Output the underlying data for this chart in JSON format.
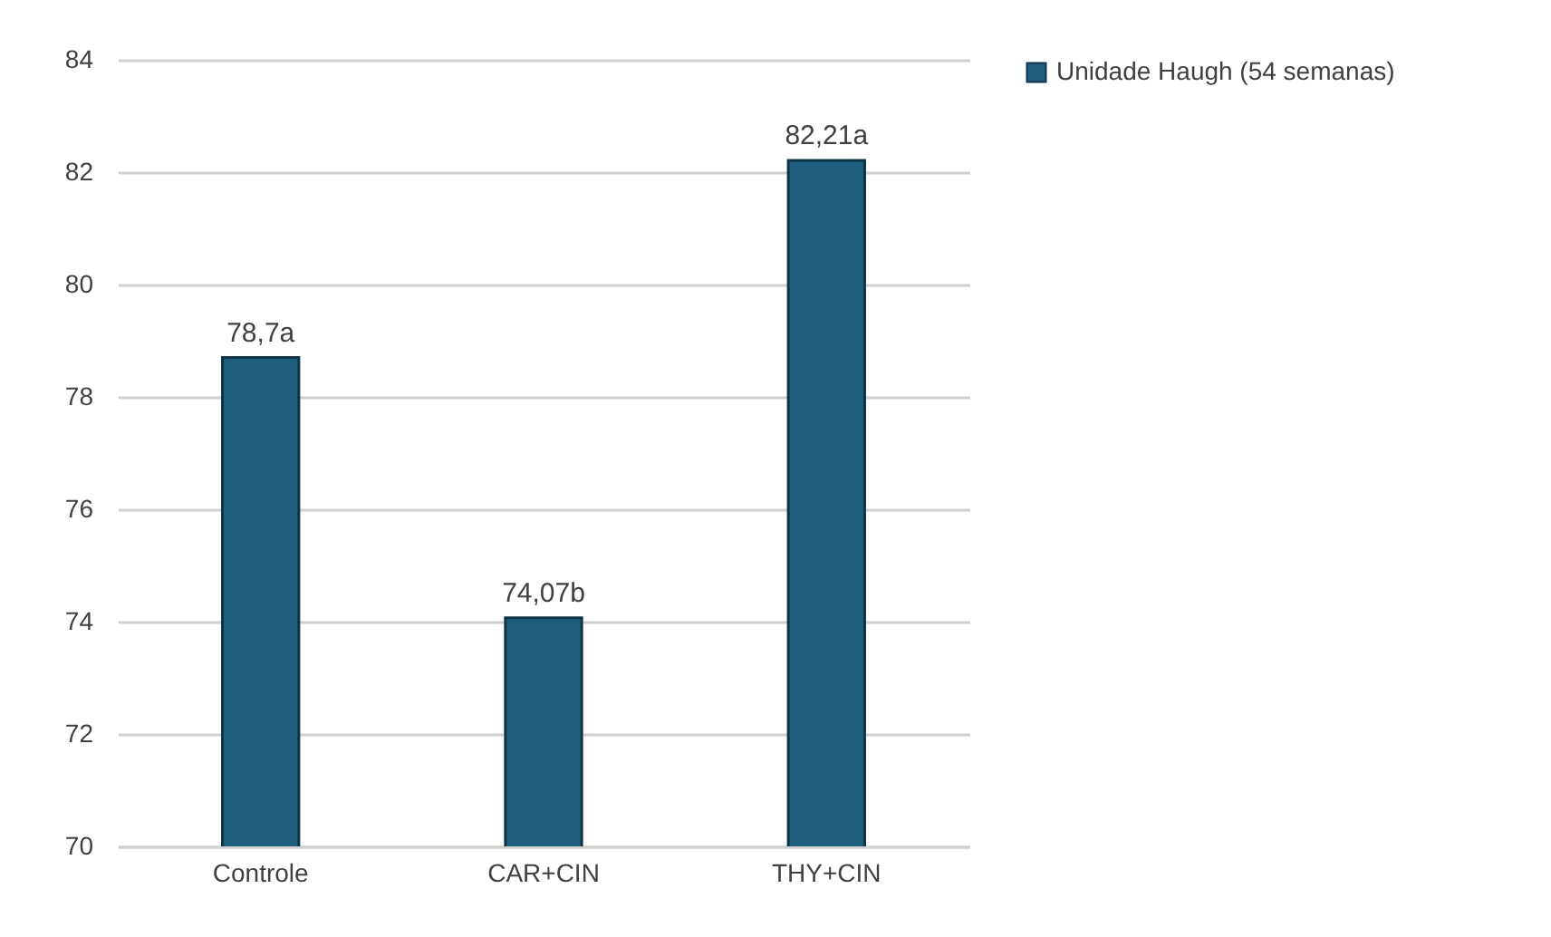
{
  "chart_data": {
    "type": "bar",
    "categories": [
      "Controle",
      "CAR+CIN",
      "THY+CIN"
    ],
    "series": [
      {
        "name": "Unidade Haugh (54 semanas)",
        "color": "#1f5f7d",
        "values": [
          78.7,
          74.07,
          82.21
        ],
        "value_labels": [
          "78,7a",
          "74,07b",
          "82,21a"
        ]
      }
    ],
    "ylim": [
      70,
      84
    ],
    "yticks": [
      70,
      72,
      74,
      76,
      78,
      80,
      82,
      84
    ],
    "grid": "y",
    "legend": "right"
  }
}
